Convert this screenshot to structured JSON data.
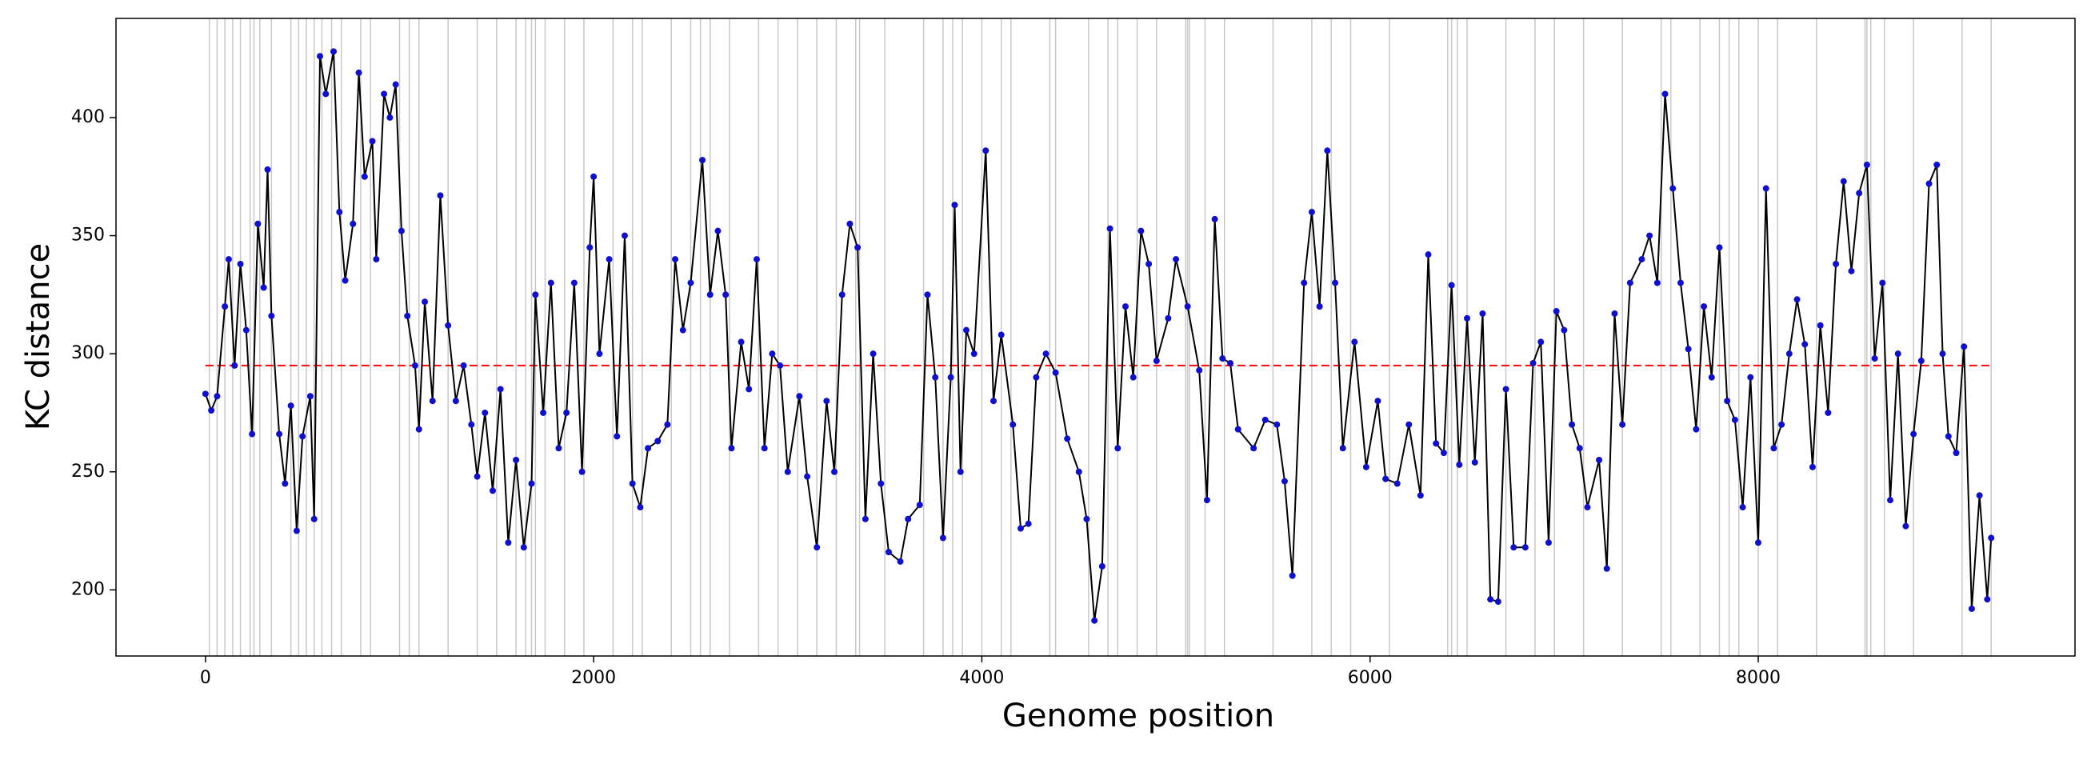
{
  "chart_data": {
    "type": "line",
    "xlabel": "Genome position",
    "ylabel": "KC distance",
    "xlim": [
      -461,
      9632
    ],
    "ylim": [
      172,
      442
    ],
    "xticks": [
      0,
      2000,
      4000,
      6000,
      8000
    ],
    "yticks": [
      200,
      250,
      300,
      350,
      400
    ],
    "hline": 295,
    "hline_color": "#ff0000",
    "vlines": [
      20,
      60,
      100,
      140,
      180,
      230,
      250,
      280,
      340,
      440,
      480,
      520,
      560,
      600,
      650,
      700,
      800,
      850,
      1000,
      1050,
      1100,
      1250,
      1400,
      1500,
      1600,
      1650,
      1680,
      1700,
      1750,
      1850,
      1950,
      2100,
      2200,
      2250,
      2400,
      2500,
      2550,
      2600,
      2700,
      2850,
      2950,
      3050,
      3150,
      3250,
      3350,
      3370,
      3500,
      3700,
      3800,
      3850,
      3900,
      4000,
      4100,
      4150,
      4350,
      4380,
      4550,
      4650,
      4700,
      4800,
      4900,
      5050,
      5060,
      5070,
      5150,
      5250,
      5500,
      5700,
      5800,
      5900,
      6100,
      6400,
      6420,
      6450,
      6500,
      6700,
      6850,
      6950,
      7100,
      7300,
      7500,
      7550,
      7700,
      7800,
      7850,
      7900,
      8000,
      8100,
      8300,
      8550,
      8560,
      8580,
      8650,
      8800,
      9050,
      9200
    ],
    "vline_color": "#c8c8c8",
    "x": [
      0,
      30,
      60,
      100,
      120,
      150,
      180,
      210,
      240,
      270,
      300,
      320,
      340,
      380,
      410,
      440,
      470,
      500,
      540,
      560,
      590,
      620,
      660,
      690,
      720,
      760,
      790,
      820,
      860,
      880,
      920,
      950,
      980,
      1010,
      1040,
      1080,
      1100,
      1130,
      1170,
      1210,
      1250,
      1290,
      1330,
      1370,
      1400,
      1440,
      1480,
      1520,
      1560,
      1600,
      1640,
      1680,
      1700,
      1740,
      1780,
      1820,
      1860,
      1900,
      1940,
      1980,
      2000,
      2030,
      2080,
      2120,
      2160,
      2200,
      2240,
      2280,
      2330,
      2380,
      2420,
      2460,
      2500,
      2560,
      2600,
      2640,
      2680,
      2710,
      2760,
      2800,
      2840,
      2880,
      2920,
      2960,
      3000,
      3060,
      3100,
      3150,
      3200,
      3240,
      3280,
      3320,
      3360,
      3400,
      3440,
      3480,
      3520,
      3580,
      3620,
      3680,
      3720,
      3760,
      3800,
      3840,
      3860,
      3890,
      3920,
      3960,
      4020,
      4060,
      4100,
      4160,
      4200,
      4240,
      4280,
      4330,
      4380,
      4440,
      4500,
      4540,
      4580,
      4620,
      4660,
      4700,
      4740,
      4780,
      4820,
      4860,
      4900,
      4960,
      5000,
      5060,
      5120,
      5160,
      5200,
      5240,
      5280,
      5320,
      5400,
      5460,
      5520,
      5560,
      5600,
      5660,
      5700,
      5740,
      5780,
      5820,
      5860,
      5920,
      5980,
      6040,
      6080,
      6140,
      6200,
      6260,
      6300,
      6340,
      6380,
      6420,
      6460,
      6500,
      6540,
      6580,
      6620,
      6660,
      6700,
      6740,
      6800,
      6840,
      6880,
      6920,
      6960,
      7000,
      7040,
      7080,
      7120,
      7180,
      7220,
      7260,
      7300,
      7340,
      7400,
      7440,
      7480,
      7520,
      7560,
      7600,
      7640,
      7680,
      7720,
      7760,
      7800,
      7840,
      7880,
      7920,
      7960,
      8000,
      8040,
      8080,
      8120,
      8160,
      8200,
      8240,
      8280,
      8320,
      8360,
      8400,
      8440,
      8480,
      8520,
      8560,
      8600,
      8640,
      8680,
      8720,
      8760,
      8800,
      8840,
      8880,
      8920,
      8950,
      8980,
      9020,
      9060,
      9100,
      9140,
      9180,
      9200
    ],
    "series": [
      {
        "color": "#000000",
        "marker_color": "#1010cc",
        "values": [
          283,
          276,
          282,
          320,
          340,
          295,
          338,
          310,
          266,
          355,
          328,
          378,
          316,
          266,
          245,
          278,
          225,
          265,
          282,
          230,
          426,
          410,
          428,
          360,
          331,
          355,
          419,
          375,
          390,
          340,
          410,
          400,
          414,
          352,
          316,
          295,
          268,
          322,
          280,
          367,
          312,
          280,
          295,
          270,
          248,
          275,
          242,
          285,
          220,
          255,
          218,
          245,
          325,
          275,
          330,
          260,
          275,
          330,
          250,
          345,
          375,
          300,
          340,
          265,
          350,
          245,
          235,
          260,
          263,
          270,
          340,
          310,
          330,
          382,
          325,
          352,
          325,
          260,
          305,
          285,
          340,
          260,
          300,
          295,
          250,
          282,
          248,
          218,
          280,
          250,
          325,
          355,
          345,
          230,
          300,
          245,
          216,
          212,
          230,
          236,
          325,
          290,
          222,
          290,
          363,
          250,
          310,
          300,
          386,
          280,
          308,
          270,
          226,
          228,
          290,
          300,
          292,
          264,
          250,
          230,
          187,
          210,
          353,
          260,
          320,
          290,
          352,
          338,
          297,
          315,
          340,
          320,
          293,
          238,
          357,
          298,
          296,
          268,
          260,
          272,
          270,
          246,
          206,
          330,
          360,
          320,
          386,
          330,
          260,
          305,
          252,
          280,
          247,
          245,
          270,
          240,
          342,
          262,
          258,
          329,
          253,
          315,
          254,
          317,
          196,
          195,
          285,
          218,
          218,
          296,
          305,
          220,
          318,
          310,
          270,
          260,
          235,
          255,
          209,
          317,
          270,
          330,
          340,
          350,
          330,
          410,
          370,
          330,
          302,
          268,
          320,
          290,
          345,
          280,
          272,
          235,
          290,
          220,
          370,
          260,
          270,
          300,
          323,
          304,
          252,
          312,
          275,
          338,
          373,
          335,
          368,
          380,
          298,
          330,
          238,
          300,
          227,
          266,
          297,
          372,
          380,
          300,
          265,
          258,
          303,
          192,
          240,
          196,
          222
        ]
      }
    ]
  }
}
